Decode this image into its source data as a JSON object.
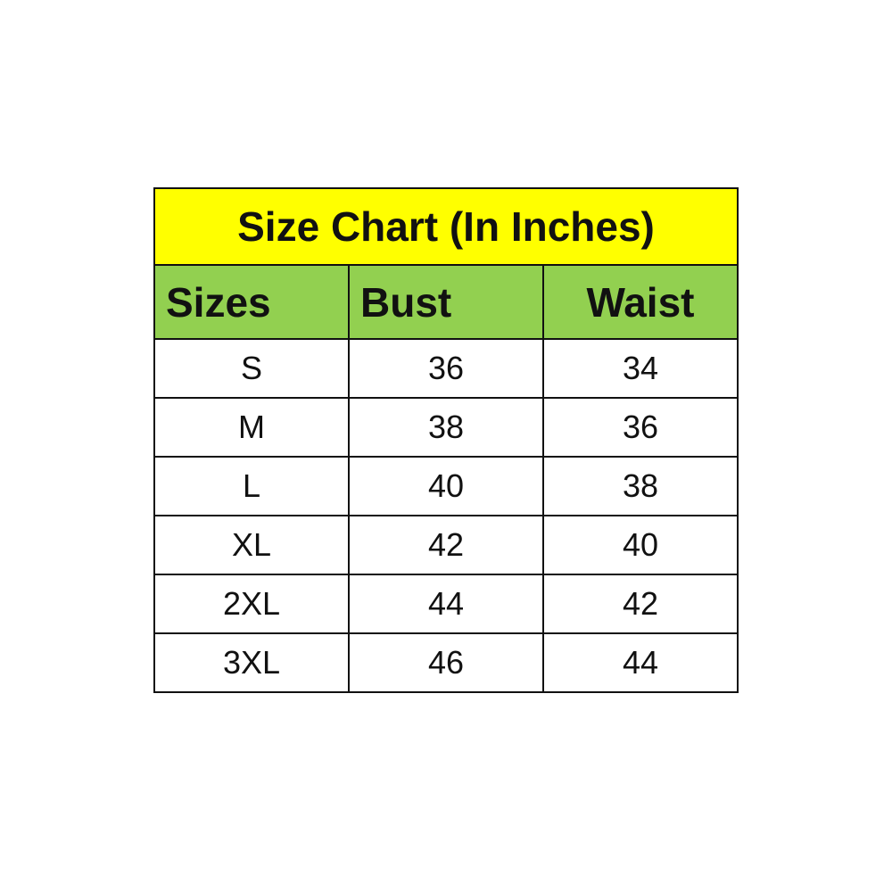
{
  "title": "Size Chart (In Inches)",
  "colors": {
    "title_bg": "#ffff00",
    "header_bg": "#92d050"
  },
  "columns": [
    "Sizes",
    "Bust",
    "Waist"
  ],
  "rows": [
    [
      "S",
      "36",
      "34"
    ],
    [
      "M",
      "38",
      "36"
    ],
    [
      "L",
      "40",
      "38"
    ],
    [
      "XL",
      "42",
      "40"
    ],
    [
      "2XL",
      "44",
      "42"
    ],
    [
      "3XL",
      "46",
      "44"
    ]
  ]
}
